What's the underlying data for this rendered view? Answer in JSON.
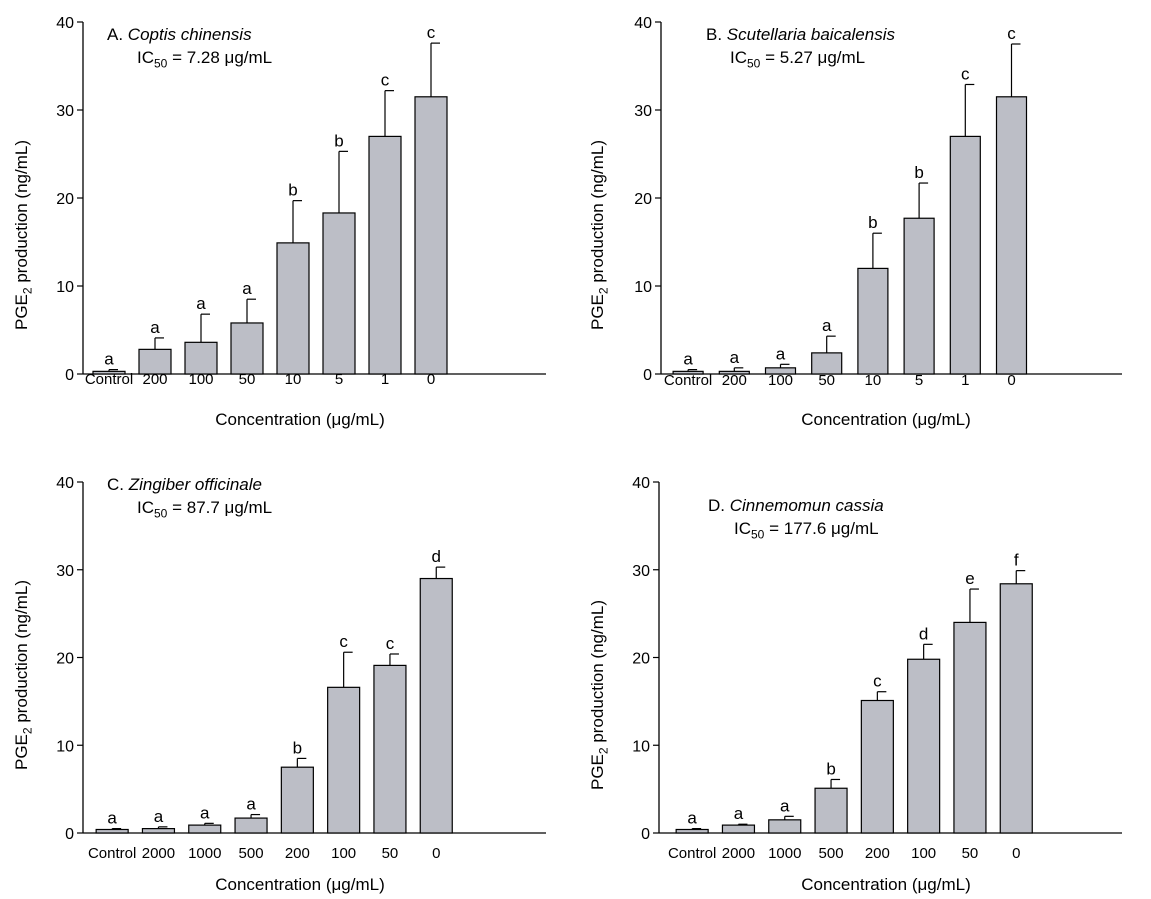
{
  "y_axis_label": {
    "prefix": "PGE",
    "sub": "2",
    "suffix": " production (ng/mL)"
  },
  "colors": {
    "bar_fill": "#bcbec6",
    "bar_stroke": "#000000"
  },
  "chart_data": [
    {
      "type": "bar",
      "panel_letter": "A.",
      "species": "Coptis chinensis",
      "ic50": {
        "label": "IC",
        "sub": "50",
        "value": " = 7.28 μg/mL"
      },
      "xlabel": "Concentration (μg/mL)",
      "ylim": [
        0,
        40
      ],
      "yticks": [
        "0",
        "10",
        "20",
        "30",
        "40"
      ],
      "categories": [
        "Control",
        "200",
        "100",
        "50",
        "10",
        "5",
        "1",
        "0"
      ],
      "values": [
        0.3,
        2.8,
        3.6,
        5.8,
        14.9,
        18.3,
        27.0,
        31.5
      ],
      "errors": [
        0.2,
        1.3,
        3.2,
        2.7,
        4.8,
        7.0,
        5.2,
        6.1
      ],
      "significance": [
        "a",
        "a",
        "a",
        "a",
        "b",
        "b",
        "c",
        "c"
      ]
    },
    {
      "type": "bar",
      "panel_letter": "B.",
      "species": "Scutellaria baicalensis",
      "ic50": {
        "label": "IC",
        "sub": "50",
        "value": " = 5.27 μg/mL"
      },
      "xlabel": "Concentration (μg/mL)",
      "ylim": [
        0,
        40
      ],
      "yticks": [
        "0",
        "10",
        "20",
        "30",
        "40"
      ],
      "categories": [
        "Control",
        "200",
        "100",
        "50",
        "10",
        "5",
        "1",
        "0"
      ],
      "values": [
        0.3,
        0.3,
        0.7,
        2.4,
        12.0,
        17.7,
        27.0,
        31.5
      ],
      "errors": [
        0.2,
        0.4,
        0.4,
        1.9,
        4.0,
        4.0,
        5.9,
        6.0
      ],
      "significance": [
        "a",
        "a",
        "a",
        "a",
        "b",
        "b",
        "c",
        "c"
      ]
    },
    {
      "type": "bar",
      "panel_letter": "C.",
      "species": "Zingiber officinale",
      "ic50": {
        "label": "IC",
        "sub": "50",
        "value": " = 87.7 μg/mL"
      },
      "xlabel": "Concentration (μg/mL)",
      "ylim": [
        0,
        40
      ],
      "yticks": [
        "0",
        "10",
        "20",
        "30",
        "40"
      ],
      "categories": [
        "Control",
        "2000",
        "1000",
        "500",
        "200",
        "100",
        "50",
        "0"
      ],
      "values": [
        0.4,
        0.5,
        0.9,
        1.7,
        7.5,
        16.6,
        19.1,
        29.0
      ],
      "errors": [
        0.1,
        0.2,
        0.2,
        0.4,
        1.0,
        4.0,
        1.3,
        1.3
      ],
      "significance": [
        "a",
        "a",
        "a",
        "a",
        "b",
        "c",
        "c",
        "d"
      ]
    },
    {
      "type": "bar",
      "panel_letter": "D.",
      "species": "Cinnemomun cassia",
      "ic50": {
        "label": "IC",
        "sub": "50",
        "value": " = 177.6 μg/mL"
      },
      "xlabel": "Concentration (μg/mL)",
      "ylim": [
        0,
        40
      ],
      "yticks": [
        "0",
        "10",
        "20",
        "30",
        "40"
      ],
      "categories": [
        "Control",
        "2000",
        "1000",
        "500",
        "200",
        "100",
        "50",
        "0"
      ],
      "values": [
        0.4,
        0.9,
        1.5,
        5.1,
        15.1,
        19.8,
        24.0,
        28.4
      ],
      "errors": [
        0.1,
        0.1,
        0.4,
        1.0,
        1.0,
        1.7,
        3.8,
        1.5
      ],
      "significance": [
        "a",
        "a",
        "a",
        "b",
        "c",
        "d",
        "e",
        "f"
      ]
    }
  ]
}
